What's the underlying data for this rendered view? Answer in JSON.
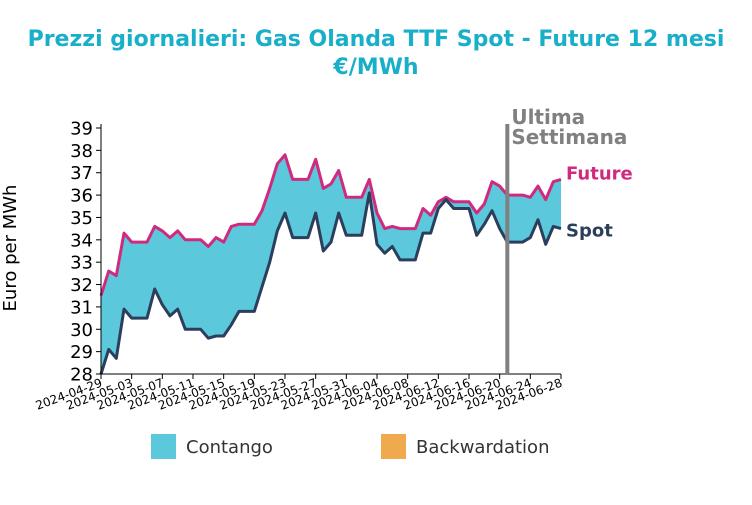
{
  "colors": {
    "title": "#1aafc9",
    "future": "#d02a7e",
    "spot": "#2b3f5c",
    "contango": "#5bc8dc",
    "backwardation": "#eeaa4c",
    "marker": "#808080"
  },
  "chart_data": {
    "type": "area",
    "title": "Prezzi giornalieri: Gas Olanda TTF Spot - Future 12 mesi",
    "subtitle": "€/MWh",
    "ylabel": "Euro per MWh",
    "xlabel": "",
    "ylim": [
      28,
      39
    ],
    "yticks": [
      "28",
      "29",
      "30",
      "31",
      "32",
      "33",
      "34",
      "35",
      "36",
      "37",
      "38",
      "39"
    ],
    "xlim": [
      "2024-04-29",
      "2024-06-28"
    ],
    "xticks": [
      "2024-04-29",
      "2024-05-03",
      "2024-05-07",
      "2024-05-11",
      "2024-05-15",
      "2024-05-19",
      "2024-05-23",
      "2024-05-27",
      "2024-05-31",
      "2024-06-04",
      "2024-06-08",
      "2024-06-12",
      "2024-06-16",
      "2024-06-20",
      "2024-06-24",
      "2024-06-28"
    ],
    "series": [
      {
        "name": "Future",
        "x": [
          "2024-04-29",
          "2024-04-30",
          "2024-05-01",
          "2024-05-02",
          "2024-05-03",
          "2024-05-04",
          "2024-05-05",
          "2024-05-06",
          "2024-05-07",
          "2024-05-08",
          "2024-05-09",
          "2024-05-10",
          "2024-05-11",
          "2024-05-12",
          "2024-05-13",
          "2024-05-14",
          "2024-05-15",
          "2024-05-16",
          "2024-05-17",
          "2024-05-18",
          "2024-05-19",
          "2024-05-20",
          "2024-05-21",
          "2024-05-22",
          "2024-05-23",
          "2024-05-24",
          "2024-05-25",
          "2024-05-26",
          "2024-05-27",
          "2024-05-28",
          "2024-05-29",
          "2024-05-30",
          "2024-05-31",
          "2024-06-01",
          "2024-06-02",
          "2024-06-03",
          "2024-06-04",
          "2024-06-05",
          "2024-06-06",
          "2024-06-07",
          "2024-06-08",
          "2024-06-09",
          "2024-06-10",
          "2024-06-11",
          "2024-06-12",
          "2024-06-13",
          "2024-06-14",
          "2024-06-15",
          "2024-06-16",
          "2024-06-17",
          "2024-06-18",
          "2024-06-19",
          "2024-06-20",
          "2024-06-21",
          "2024-06-22",
          "2024-06-23",
          "2024-06-24",
          "2024-06-25",
          "2024-06-26",
          "2024-06-27",
          "2024-06-28"
        ],
        "values": [
          31.5,
          32.6,
          32.4,
          34.3,
          33.9,
          33.9,
          33.9,
          34.6,
          34.4,
          34.1,
          34.4,
          34.0,
          34.0,
          34.0,
          33.7,
          34.1,
          33.9,
          34.6,
          34.7,
          34.7,
          34.7,
          35.3,
          36.3,
          37.4,
          37.8,
          36.7,
          36.7,
          36.7,
          37.6,
          36.3,
          36.5,
          37.1,
          35.9,
          35.9,
          35.9,
          36.7,
          35.2,
          34.5,
          34.6,
          34.5,
          34.5,
          34.5,
          35.4,
          35.1,
          35.7,
          35.9,
          35.7,
          35.7,
          35.7,
          35.2,
          35.6,
          36.6,
          36.4,
          36.0,
          36.0,
          36.0,
          35.9,
          36.4,
          35.8,
          36.6,
          36.7
        ]
      },
      {
        "name": "Spot",
        "x": [
          "2024-04-29",
          "2024-04-30",
          "2024-05-01",
          "2024-05-02",
          "2024-05-03",
          "2024-05-04",
          "2024-05-05",
          "2024-05-06",
          "2024-05-07",
          "2024-05-08",
          "2024-05-09",
          "2024-05-10",
          "2024-05-11",
          "2024-05-12",
          "2024-05-13",
          "2024-05-14",
          "2024-05-15",
          "2024-05-16",
          "2024-05-17",
          "2024-05-18",
          "2024-05-19",
          "2024-05-20",
          "2024-05-21",
          "2024-05-22",
          "2024-05-23",
          "2024-05-24",
          "2024-05-25",
          "2024-05-26",
          "2024-05-27",
          "2024-05-28",
          "2024-05-29",
          "2024-05-30",
          "2024-05-31",
          "2024-06-01",
          "2024-06-02",
          "2024-06-03",
          "2024-06-04",
          "2024-06-05",
          "2024-06-06",
          "2024-06-07",
          "2024-06-08",
          "2024-06-09",
          "2024-06-10",
          "2024-06-11",
          "2024-06-12",
          "2024-06-13",
          "2024-06-14",
          "2024-06-15",
          "2024-06-16",
          "2024-06-17",
          "2024-06-18",
          "2024-06-19",
          "2024-06-20",
          "2024-06-21",
          "2024-06-22",
          "2024-06-23",
          "2024-06-24",
          "2024-06-25",
          "2024-06-26",
          "2024-06-27",
          "2024-06-28"
        ],
        "values": [
          28.0,
          29.1,
          28.7,
          30.9,
          30.5,
          30.5,
          30.5,
          31.8,
          31.1,
          30.6,
          30.9,
          30.0,
          30.0,
          30.0,
          29.6,
          29.7,
          29.7,
          30.2,
          30.8,
          30.8,
          30.8,
          31.9,
          33.0,
          34.4,
          35.2,
          34.1,
          34.1,
          34.1,
          35.2,
          33.5,
          33.9,
          35.2,
          34.2,
          34.2,
          34.2,
          36.1,
          33.8,
          33.4,
          33.7,
          33.1,
          33.1,
          33.1,
          34.3,
          34.3,
          35.4,
          35.8,
          35.4,
          35.4,
          35.4,
          34.2,
          34.7,
          35.3,
          34.5,
          33.9,
          33.9,
          33.9,
          34.1,
          34.9,
          33.8,
          34.6,
          34.5
        ]
      }
    ],
    "annotations": [
      {
        "date": "2024-06-21",
        "label_line1": "Ultima",
        "label_line2": "Settimana"
      }
    ],
    "legend": {
      "placement": "bottom",
      "items": [
        {
          "label": "Contango",
          "color": "#5bc8dc"
        },
        {
          "label": "Backwardation",
          "color": "#eeaa4c"
        }
      ]
    },
    "grid": false
  }
}
